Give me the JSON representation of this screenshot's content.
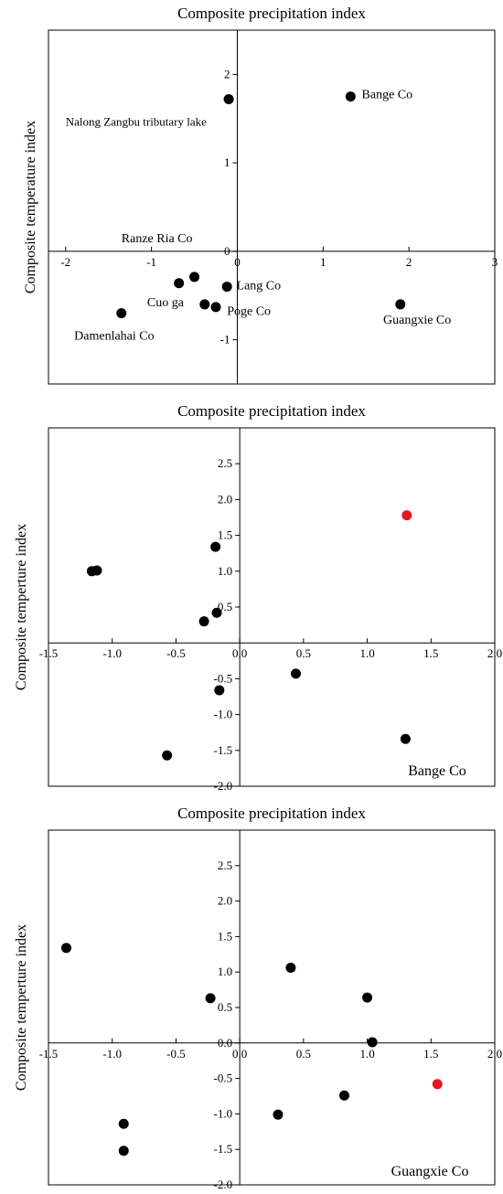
{
  "chart_data": [
    {
      "type": "scatter",
      "title": "Composite precipitation index",
      "ylabel": "Composite temperature index",
      "xlim": [
        -2.2,
        3.0
      ],
      "ylim": [
        -1.5,
        2.5
      ],
      "x_ticks": [
        -2,
        -1,
        0,
        1,
        2,
        3
      ],
      "x_tick_labels": [
        "-2",
        "-1",
        "0",
        "1",
        "2",
        "3"
      ],
      "y_ticks": [
        -1,
        0,
        1,
        2
      ],
      "y_tick_labels": [
        "-1",
        "0",
        "1",
        "2"
      ],
      "grid": false,
      "corner_label": "",
      "point_labels": [
        {
          "text": "Nalong Zangbu tributary lake",
          "x": -2.0,
          "y": 1.42
        },
        {
          "text": "Bange Co",
          "x": 1.45,
          "y": 1.73
        },
        {
          "text": "Ranze Ria Co",
          "x": -1.35,
          "y": 0.1
        },
        {
          "text": "Lang Co",
          "x": -0.01,
          "y": -0.43
        },
        {
          "text": "Cuo ga",
          "x": -1.05,
          "y": -0.62
        },
        {
          "text": "Poge Co",
          "x": -0.12,
          "y": -0.72
        },
        {
          "text": "Guangxie Co",
          "x": 1.7,
          "y": -0.82
        },
        {
          "text": "Damenlahai Co",
          "x": -1.9,
          "y": -1.0
        }
      ],
      "points": [
        {
          "x": -0.1,
          "y": 1.72,
          "color": "#000000"
        },
        {
          "x": 1.32,
          "y": 1.75,
          "color": "#000000"
        },
        {
          "x": -0.68,
          "y": -0.36,
          "color": "#000000"
        },
        {
          "x": -0.5,
          "y": -0.29,
          "color": "#000000"
        },
        {
          "x": -0.12,
          "y": -0.4,
          "color": "#000000"
        },
        {
          "x": -0.38,
          "y": -0.6,
          "color": "#000000"
        },
        {
          "x": -0.25,
          "y": -0.63,
          "color": "#000000"
        },
        {
          "x": -1.35,
          "y": -0.7,
          "color": "#000000"
        },
        {
          "x": 1.9,
          "y": -0.6,
          "color": "#000000"
        }
      ]
    },
    {
      "type": "scatter",
      "title": "Composite precipitation index",
      "ylabel": "Composite temperture index",
      "xlim": [
        -1.5,
        2.0
      ],
      "ylim": [
        -2.0,
        3.0
      ],
      "x_ticks": [
        -1.5,
        -1.0,
        -0.5,
        0.0,
        0.5,
        1.0,
        1.5,
        2.0
      ],
      "x_tick_labels": [
        "-1.5",
        "-1.0",
        "-0.5",
        "0.0",
        "0.5",
        "1.0",
        "1.5",
        "2.0"
      ],
      "y_ticks": [
        -2.0,
        -1.5,
        -1.0,
        -0.5,
        0.5,
        1.0,
        1.5,
        2.0,
        2.5
      ],
      "y_tick_labels": [
        "-2.0",
        "-1.5",
        "-1.0",
        "-0.5",
        "0.5",
        "1.0",
        "1.5",
        "2.0",
        "2.5"
      ],
      "grid": false,
      "corner_label": "Bange Co",
      "point_labels": [],
      "points": [
        {
          "x": 1.31,
          "y": 1.78,
          "color": "#e8161b"
        },
        {
          "x": -0.19,
          "y": 1.34,
          "color": "#000000"
        },
        {
          "x": -1.16,
          "y": 1.0,
          "color": "#000000"
        },
        {
          "x": -1.12,
          "y": 1.01,
          "color": "#000000"
        },
        {
          "x": -0.18,
          "y": 0.42,
          "color": "#000000"
        },
        {
          "x": -0.28,
          "y": 0.3,
          "color": "#000000"
        },
        {
          "x": 0.44,
          "y": -0.43,
          "color": "#000000"
        },
        {
          "x": -0.16,
          "y": -0.66,
          "color": "#000000"
        },
        {
          "x": -0.57,
          "y": -1.57,
          "color": "#000000"
        },
        {
          "x": 1.3,
          "y": -1.34,
          "color": "#000000"
        }
      ]
    },
    {
      "type": "scatter",
      "title": "Composite precipitation index",
      "ylabel": "Composite temperture index",
      "xlim": [
        -1.5,
        2.0
      ],
      "ylim": [
        -2.0,
        3.0
      ],
      "x_ticks": [
        -1.5,
        -1.0,
        -0.5,
        0.0,
        0.5,
        1.0,
        1.5,
        2.0
      ],
      "x_tick_labels": [
        "-1.5",
        "-1.0",
        "-0.5",
        "0.0",
        "0.5",
        "1.0",
        "1.5",
        "2.0"
      ],
      "y_ticks": [
        -2.0,
        -1.5,
        -1.0,
        -0.5,
        0.0,
        0.5,
        1.0,
        1.5,
        2.0,
        2.5
      ],
      "y_tick_labels": [
        "-2.0",
        "-1.5",
        "-1.0",
        "-0.5",
        "0.0",
        "0.5",
        "1.0",
        "1.5",
        "2.0",
        "2.5"
      ],
      "grid": false,
      "corner_label": "Guangxie Co",
      "point_labels": [],
      "points": [
        {
          "x": 1.55,
          "y": -0.58,
          "color": "#e8161b"
        },
        {
          "x": -1.36,
          "y": 1.34,
          "color": "#000000"
        },
        {
          "x": 0.4,
          "y": 1.06,
          "color": "#000000"
        },
        {
          "x": -0.23,
          "y": 0.63,
          "color": "#000000"
        },
        {
          "x": 1.0,
          "y": 0.64,
          "color": "#000000"
        },
        {
          "x": 1.04,
          "y": 0.01,
          "color": "#000000"
        },
        {
          "x": 0.82,
          "y": -0.74,
          "color": "#000000"
        },
        {
          "x": 0.3,
          "y": -1.01,
          "color": "#000000"
        },
        {
          "x": -0.91,
          "y": -1.14,
          "color": "#000000"
        },
        {
          "x": -0.91,
          "y": -1.52,
          "color": "#000000"
        }
      ]
    }
  ]
}
